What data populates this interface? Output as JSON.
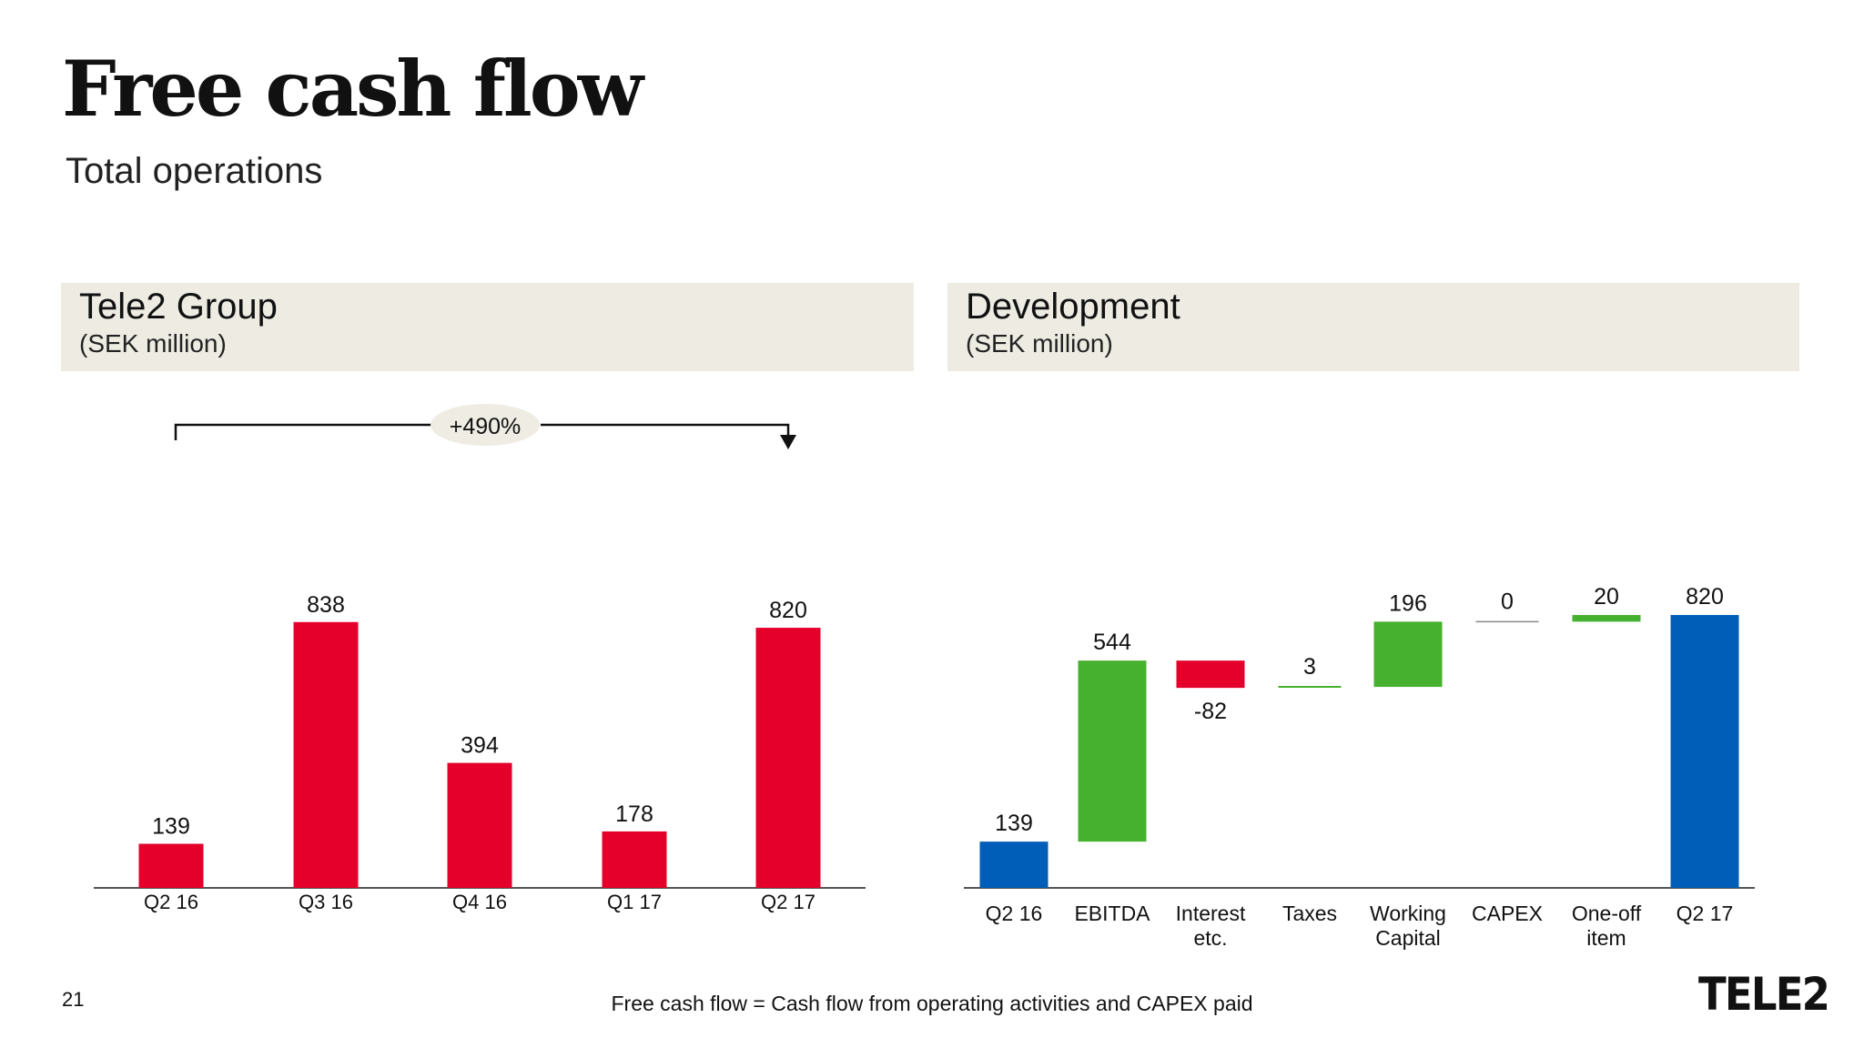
{
  "title": "Free cash flow",
  "subtitle": "Total operations",
  "panels": {
    "left": {
      "title": "Tele2 Group",
      "unit": "(SEK million)"
    },
    "right": {
      "title": "Development",
      "unit": "(SEK million)"
    }
  },
  "growth_annotation": "+490%",
  "footnote": "Free cash flow = Cash flow from operating activities and CAPEX paid",
  "page_number": "21",
  "logo_text": "TELE2",
  "colors": {
    "red": "#e4002b",
    "green": "#46b12e",
    "blue": "#005eb8",
    "header_bg": "#edebe2",
    "bubble_bg": "#eeece3"
  },
  "chart_data": [
    {
      "type": "bar",
      "title": "Tele2 Group",
      "categories": [
        "Q2 16",
        "Q3 16",
        "Q4 16",
        "Q1 17",
        "Q2 17"
      ],
      "values": [
        139,
        838,
        394,
        178,
        820
      ],
      "value_labels": [
        "139",
        "838",
        "394",
        "178",
        "820"
      ],
      "ylim": [
        0,
        900
      ],
      "grid": false
    },
    {
      "type": "bar",
      "subtype": "waterfall",
      "title": "Development",
      "categories": [
        "Q2 16",
        "EBITDA",
        "Interest etc.",
        "Taxes",
        "Working Capital",
        "CAPEX",
        "One-off item",
        "Q2 17"
      ],
      "category_lines": [
        [
          "Q2 16"
        ],
        [
          "EBITDA"
        ],
        [
          "Interest",
          "etc."
        ],
        [
          "Taxes"
        ],
        [
          "Working",
          "Capital"
        ],
        [
          "CAPEX"
        ],
        [
          "One-off",
          "item"
        ],
        [
          "Q2 17"
        ]
      ],
      "values": [
        139,
        544,
        -82,
        3,
        196,
        0,
        20,
        820
      ],
      "value_labels": [
        "139",
        "544",
        "-82",
        "3",
        "196",
        "0",
        "20",
        "820"
      ],
      "kinds": [
        "total",
        "increase",
        "decrease",
        "increase",
        "increase",
        "increase",
        "increase",
        "total"
      ],
      "ylim": [
        0,
        900
      ],
      "grid": false
    }
  ]
}
